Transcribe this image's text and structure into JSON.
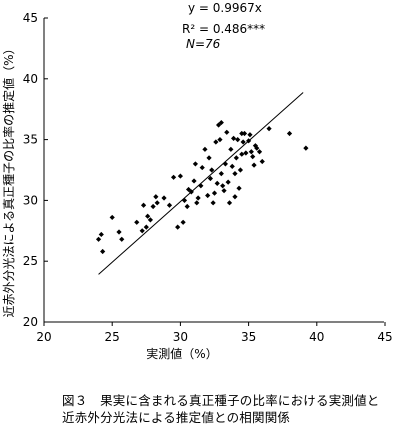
{
  "chart_data": {
    "type": "scatter",
    "xlabel": "実測値（%）",
    "ylabel": "近赤外分光法による真正種子の比率の推定値（%）",
    "xlim": [
      20,
      45
    ],
    "ylim": [
      20,
      45
    ],
    "xticks": [
      "20",
      "25",
      "30",
      "35",
      "40",
      "45"
    ],
    "yticks": [
      "20",
      "25",
      "30",
      "35",
      "40",
      "45"
    ],
    "grid": false,
    "annotations": [
      "y = 0.9967x",
      "R² = 0.486***",
      "N=76"
    ],
    "regression": {
      "slope": 0.9967,
      "intercept": 0,
      "x_range": [
        24,
        39
      ]
    },
    "points": [
      [
        24.0,
        26.8
      ],
      [
        24.2,
        27.2
      ],
      [
        24.3,
        25.8
      ],
      [
        25.5,
        27.4
      ],
      [
        25.7,
        26.8
      ],
      [
        26.8,
        28.2
      ],
      [
        27.2,
        27.5
      ],
      [
        27.3,
        29.6
      ],
      [
        27.5,
        27.8
      ],
      [
        27.6,
        28.7
      ],
      [
        27.8,
        28.4
      ],
      [
        28.0,
        29.5
      ],
      [
        28.2,
        30.3
      ],
      [
        28.3,
        29.8
      ],
      [
        28.8,
        30.2
      ],
      [
        29.2,
        29.6
      ],
      [
        29.5,
        31.9
      ],
      [
        29.8,
        27.8
      ],
      [
        30.0,
        32.0
      ],
      [
        30.2,
        28.2
      ],
      [
        30.3,
        30.0
      ],
      [
        30.5,
        29.5
      ],
      [
        30.6,
        30.9
      ],
      [
        30.8,
        30.7
      ],
      [
        31.0,
        31.6
      ],
      [
        31.1,
        33.0
      ],
      [
        31.2,
        29.8
      ],
      [
        31.3,
        30.2
      ],
      [
        31.5,
        31.2
      ],
      [
        31.6,
        32.7
      ],
      [
        31.8,
        34.2
      ],
      [
        32.0,
        30.4
      ],
      [
        32.1,
        33.5
      ],
      [
        32.2,
        31.8
      ],
      [
        32.3,
        32.5
      ],
      [
        32.4,
        29.8
      ],
      [
        32.5,
        30.6
      ],
      [
        32.6,
        34.8
      ],
      [
        32.7,
        31.4
      ],
      [
        32.8,
        36.2
      ],
      [
        32.9,
        35.0
      ],
      [
        33.0,
        36.4
      ],
      [
        33.0,
        32.2
      ],
      [
        33.1,
        31.2
      ],
      [
        33.2,
        30.8
      ],
      [
        33.3,
        33.0
      ],
      [
        33.4,
        35.6
      ],
      [
        33.5,
        31.5
      ],
      [
        33.6,
        29.8
      ],
      [
        33.7,
        34.2
      ],
      [
        33.8,
        32.8
      ],
      [
        33.9,
        35.1
      ],
      [
        34.0,
        32.2
      ],
      [
        34.0,
        30.3
      ],
      [
        34.1,
        33.5
      ],
      [
        34.2,
        35.0
      ],
      [
        34.3,
        31.0
      ],
      [
        34.4,
        32.5
      ],
      [
        34.5,
        35.5
      ],
      [
        34.5,
        33.8
      ],
      [
        34.6,
        34.8
      ],
      [
        34.7,
        35.5
      ],
      [
        34.8,
        33.9
      ],
      [
        35.0,
        34.9
      ],
      [
        35.1,
        35.4
      ],
      [
        35.2,
        34.0
      ],
      [
        35.3,
        33.6
      ],
      [
        35.4,
        32.9
      ],
      [
        35.5,
        34.5
      ],
      [
        35.6,
        34.3
      ],
      [
        35.8,
        34.0
      ],
      [
        36.0,
        33.2
      ],
      [
        36.5,
        35.9
      ],
      [
        38.0,
        35.5
      ],
      [
        39.2,
        34.3
      ],
      [
        25.0,
        28.6
      ]
    ]
  },
  "caption": {
    "line1": "図３　果実に含まれる真正種子の比率における実測値と",
    "line2": "近赤外分光法による推定値との相関関係"
  }
}
